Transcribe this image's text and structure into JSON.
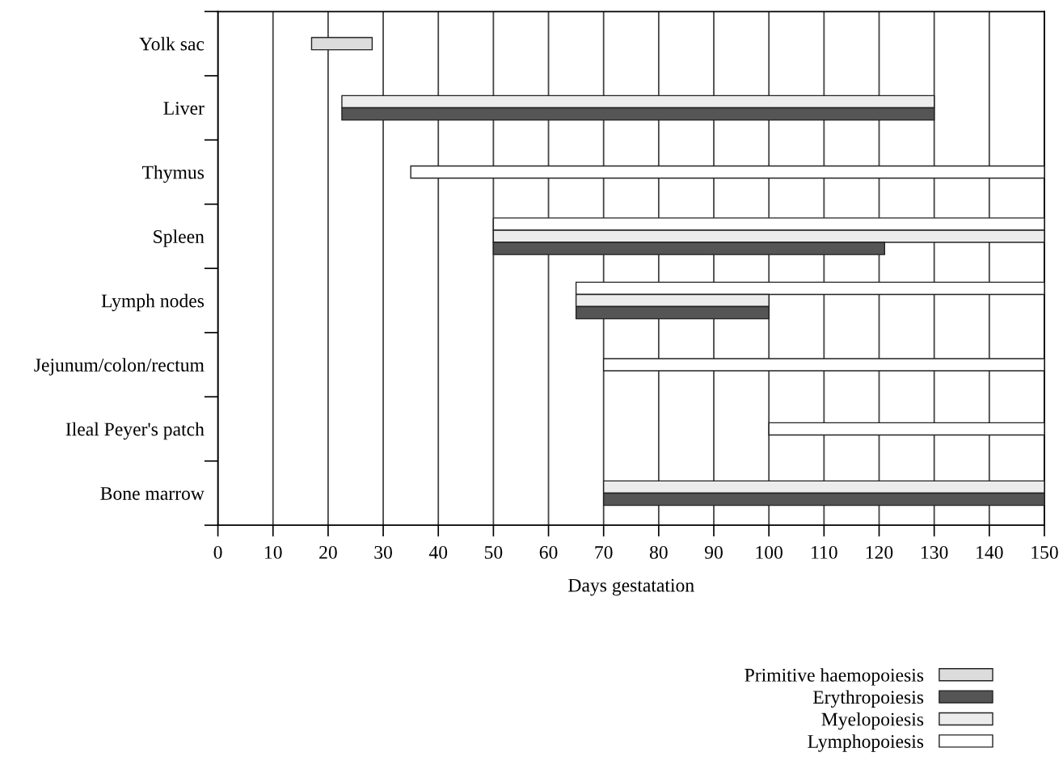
{
  "chart_data": {
    "type": "bar",
    "orientation": "horizontal",
    "xlabel": "Days gestatation",
    "categories": [
      "Yolk sac",
      "Liver",
      "Thymus",
      "Spleen",
      "Lymph nodes",
      "Jejunum/colon/rectum",
      "Ileal Peyer's patch",
      "Bone marrow"
    ],
    "series": [
      {
        "name": "Primitive haemopoiesis",
        "color": "#dcdcdc",
        "values": [
          11,
          null,
          null,
          null,
          null,
          null,
          null,
          null
        ],
        "base": [
          17,
          null,
          null,
          null,
          null,
          null,
          null,
          null
        ]
      },
      {
        "name": "Erythropoiesis",
        "color": "#555555",
        "values": [
          null,
          107.5,
          null,
          71,
          35,
          null,
          null,
          80
        ],
        "base": [
          null,
          22.5,
          null,
          50,
          65,
          null,
          null,
          70
        ]
      },
      {
        "name": "Myelopoiesis",
        "color": "#ececec",
        "values": [
          null,
          107.5,
          null,
          100,
          35,
          null,
          null,
          80
        ],
        "base": [
          null,
          22.5,
          null,
          50,
          65,
          null,
          null,
          70
        ]
      },
      {
        "name": "Lymphopoiesis",
        "color": "#ffffff",
        "values": [
          null,
          null,
          115,
          100,
          85,
          80,
          50,
          null
        ],
        "base": [
          null,
          null,
          35,
          50,
          65,
          70,
          100,
          null
        ]
      }
    ],
    "xlim": [
      0,
      150
    ],
    "xticks": [
      0,
      10,
      20,
      30,
      40,
      50,
      60,
      70,
      80,
      90,
      100,
      110,
      120,
      130,
      140,
      150
    ],
    "grid": "x",
    "legend": "bottom right"
  }
}
